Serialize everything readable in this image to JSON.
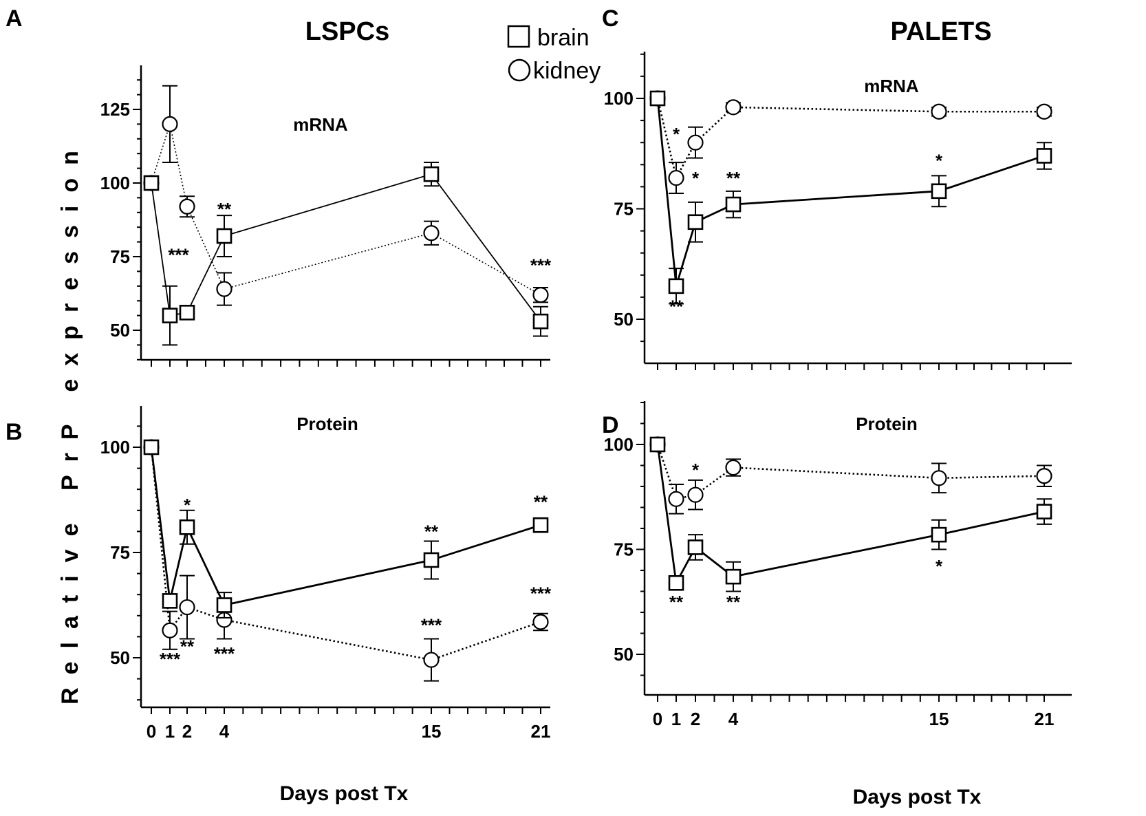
{
  "y_axis_title": "Relative PrP expression",
  "x_axis_title_left": "Days post Tx",
  "x_axis_title_right": "Days post Tx",
  "legend": {
    "brain": "brain",
    "kidney": "kidney",
    "brain_marker": "square",
    "kidney_marker": "circle"
  },
  "titles": {
    "left": "LSPCs",
    "right": "PALETS"
  },
  "chart_data": [
    {
      "panel": "A",
      "label": "mRNA",
      "type": "line",
      "x": [
        0,
        1,
        2,
        4,
        15,
        21
      ],
      "xticks": [
        "0",
        "1",
        "2",
        "4",
        "15",
        "21"
      ],
      "yticks": [
        50,
        75,
        100,
        125
      ],
      "ylim": [
        40,
        140
      ],
      "series": [
        {
          "name": "brain",
          "style": "solid",
          "marker": "square",
          "values": [
            100,
            55,
            56,
            82,
            103,
            53
          ],
          "errors": [
            0,
            10,
            2,
            7,
            4,
            5
          ]
        },
        {
          "name": "kidney",
          "style": "dotted",
          "marker": "circle",
          "values": [
            100,
            120,
            92,
            64,
            83,
            62
          ],
          "errors": [
            0,
            13,
            3.5,
            5.5,
            4,
            2.5
          ]
        }
      ],
      "annotations": [
        {
          "x": 1.5,
          "y": 73.5,
          "text": "***"
        },
        {
          "x": 4,
          "y": 89,
          "text": "**"
        },
        {
          "x": 21,
          "y": 70,
          "text": "***"
        }
      ]
    },
    {
      "panel": "B",
      "label": "Protein",
      "type": "line",
      "x": [
        0,
        1,
        2,
        4,
        15,
        21
      ],
      "xticks": [
        "0",
        "1",
        "2",
        "4",
        "15",
        "21"
      ],
      "yticks": [
        50,
        75,
        100
      ],
      "ylim": [
        40,
        110
      ],
      "series": [
        {
          "name": "brain",
          "style": "solid",
          "marker": "square",
          "values": [
            100,
            63.5,
            81,
            62.5,
            73.2,
            81.5
          ],
          "errors": [
            0,
            1.5,
            4,
            3,
            4.5,
            1
          ]
        },
        {
          "name": "kidney",
          "style": "dotted",
          "marker": "circle",
          "values": [
            100,
            56.5,
            62,
            59,
            49.5,
            58.5
          ],
          "errors": [
            0,
            4.5,
            7.5,
            4.5,
            5,
            2
          ]
        }
      ],
      "annotations": [
        {
          "x": 1,
          "y": 48.2,
          "text": "***"
        },
        {
          "x": 2,
          "y": 84.8,
          "text": "*"
        },
        {
          "x": 2,
          "y": 51.2,
          "text": "**"
        },
        {
          "x": 4,
          "y": 49.5,
          "text": "***"
        },
        {
          "x": 15,
          "y": 78.5,
          "text": "**"
        },
        {
          "x": 15,
          "y": 56.3,
          "text": "***"
        },
        {
          "x": 21,
          "y": 85.5,
          "text": "**"
        },
        {
          "x": 21,
          "y": 63.8,
          "text": "***"
        }
      ]
    },
    {
      "panel": "C",
      "label": "mRNA",
      "type": "line",
      "x": [
        0,
        1,
        2,
        4,
        15,
        21
      ],
      "xticks": [
        "0",
        "1",
        "2",
        "4",
        "15",
        "21"
      ],
      "yticks": [
        50,
        75,
        100
      ],
      "ylim": [
        40,
        110
      ],
      "series": [
        {
          "name": "brain",
          "style": "solid",
          "marker": "square",
          "values": [
            100,
            57.5,
            72,
            76,
            79,
            87
          ],
          "errors": [
            0,
            4,
            4.5,
            3,
            3.5,
            3
          ]
        },
        {
          "name": "kidney",
          "style": "dotted",
          "marker": "circle",
          "values": [
            100,
            82,
            90,
            98,
            97,
            97
          ],
          "errors": [
            0,
            3.5,
            3.5,
            1,
            1,
            1
          ]
        }
      ],
      "annotations": [
        {
          "x": 1,
          "y": 90.5,
          "text": "*"
        },
        {
          "x": 1,
          "y": 51.5,
          "text": "**"
        },
        {
          "x": 2,
          "y": 80.5,
          "text": "*"
        },
        {
          "x": 4,
          "y": 80.5,
          "text": "**"
        },
        {
          "x": 15,
          "y": 84.5,
          "text": "*"
        }
      ]
    },
    {
      "panel": "D",
      "label": "Protein",
      "type": "line",
      "x": [
        0,
        1,
        2,
        4,
        15,
        21
      ],
      "xticks": [
        "0",
        "1",
        "2",
        "4",
        "15",
        "21"
      ],
      "yticks": [
        50,
        75,
        100
      ],
      "ylim": [
        40,
        110
      ],
      "series": [
        {
          "name": "brain",
          "style": "solid",
          "marker": "square",
          "values": [
            100,
            67,
            75.5,
            68.5,
            78.5,
            84
          ],
          "errors": [
            0,
            1.5,
            3,
            3.5,
            3.5,
            3
          ]
        },
        {
          "name": "kidney",
          "style": "dotted",
          "marker": "circle",
          "values": [
            100,
            87,
            88,
            94.5,
            92,
            92.5
          ],
          "errors": [
            0,
            3.5,
            3.5,
            2,
            3.5,
            2.5
          ]
        }
      ],
      "annotations": [
        {
          "x": 1,
          "y": 61,
          "text": "**"
        },
        {
          "x": 2,
          "y": 92.5,
          "text": "*"
        },
        {
          "x": 4,
          "y": 61,
          "text": "**"
        },
        {
          "x": 15,
          "y": 69.5,
          "text": "*"
        }
      ]
    }
  ]
}
